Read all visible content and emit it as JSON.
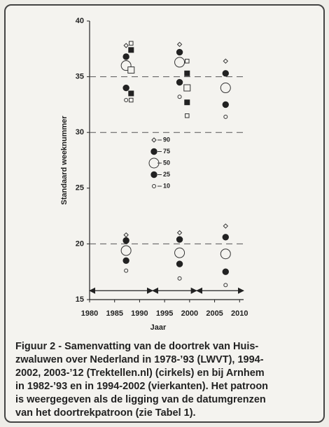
{
  "chart_data": {
    "type": "scatter",
    "xlabel": "Jaar",
    "ylabel": "Standaard weeknummer",
    "xlim": [
      1980,
      2010.8
    ],
    "ylim": [
      15,
      40
    ],
    "xticks": [
      1980,
      1985,
      1990,
      1995,
      2000,
      2005,
      2010
    ],
    "yticks": [
      15,
      20,
      25,
      30,
      35,
      40
    ],
    "dashed_lines": [
      20,
      30,
      35
    ],
    "arrow_y": 15.8,
    "period_arrows": [
      [
        1980,
        1992.6
      ],
      [
        1992.6,
        2001.4
      ],
      [
        2001.4,
        2010.8
      ]
    ],
    "series": [
      {
        "name": "90",
        "marker": "small-open-diamond",
        "x": [
          1987.3,
          1998,
          2007.2,
          1987.3,
          1998,
          2007.2
        ],
        "values": [
          37.8,
          37.9,
          36.4,
          20.8,
          21.0,
          21.6
        ]
      },
      {
        "name": "75",
        "marker": "filled-circle",
        "x": [
          1987.3,
          1998,
          2007.2,
          1987.3,
          1998,
          2007.2
        ],
        "values": [
          36.8,
          37.2,
          35.3,
          20.3,
          20.4,
          20.6
        ]
      },
      {
        "name": "50",
        "marker": "large-open-circle",
        "x": [
          1987.3,
          1998,
          2007.2,
          1987.3,
          1998,
          2007.2
        ],
        "values": [
          36.0,
          36.3,
          34.0,
          19.4,
          19.2,
          19.1
        ]
      },
      {
        "name": "25",
        "marker": "filled-circle",
        "x": [
          1987.3,
          1998,
          2007.2,
          1987.3,
          1998,
          2007.2
        ],
        "values": [
          34.0,
          34.5,
          32.5,
          18.5,
          18.2,
          17.5
        ]
      },
      {
        "name": "10",
        "marker": "small-open-circle",
        "x": [
          1987.3,
          1998,
          2007.2,
          1987.3,
          1998,
          2007.2
        ],
        "values": [
          32.9,
          33.2,
          31.4,
          17.6,
          16.9,
          16.3
        ]
      },
      {
        "name": "90",
        "marker": "small-open-square",
        "x": [
          1988.3,
          1999.5
        ],
        "values": [
          38.0,
          36.4
        ]
      },
      {
        "name": "75",
        "marker": "filled-square",
        "x": [
          1988.3,
          1999.5
        ],
        "values": [
          37.4,
          35.3
        ]
      },
      {
        "name": "50",
        "marker": "large-open-square",
        "x": [
          1988.3,
          1999.5
        ],
        "values": [
          35.6,
          34.0
        ]
      },
      {
        "name": "25",
        "marker": "filled-square",
        "x": [
          1988.3,
          1999.5
        ],
        "values": [
          33.5,
          32.7
        ]
      },
      {
        "name": "10",
        "marker": "small-open-square",
        "x": [
          1988.3,
          1999.5
        ],
        "values": [
          32.9,
          31.5
        ]
      }
    ],
    "legend_series": [
      0,
      1,
      2,
      3,
      4
    ]
  },
  "caption_lines": [
    "Figuur 2 - Samenvatting van de doortrek van Huis-",
    "zwaluwen over Nederland in 1978-’93 (LWVT), 1994-",
    "2002, 2003-’12 (Trektellen.nl) (cirkels) en bij Arnhem",
    "in 1982-’93 en in 1994-2002 (vierkanten). Het patroon",
    "is weergegeven als de ligging van de datumgrenzen",
    "van het doortrekpatroon (zie Tabel 1)."
  ]
}
